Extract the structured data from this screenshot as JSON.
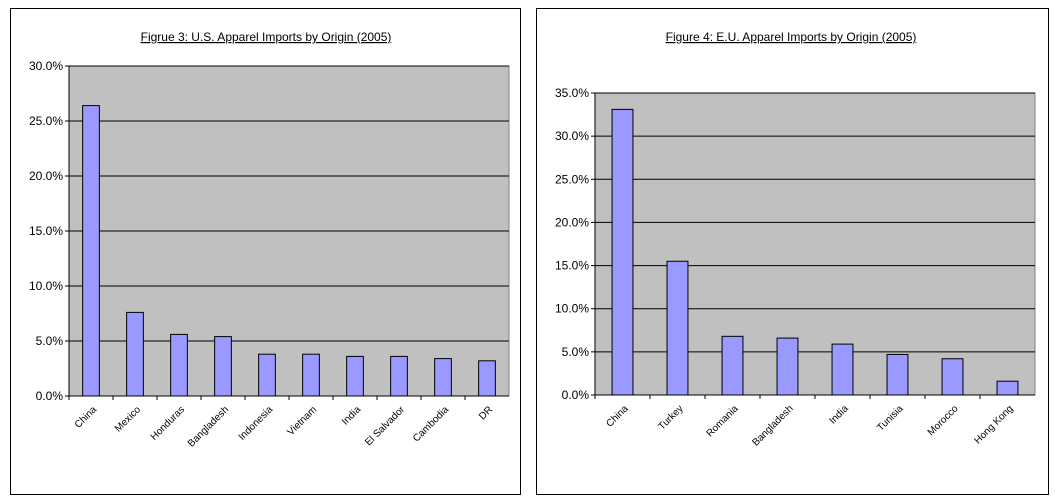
{
  "charts": [
    {
      "type": "bar",
      "title": "Figrue 3: U.S. Apparel Imports by Origin (2005)",
      "categories": [
        "China",
        "Mexico",
        "Honduras",
        "Bangladesh",
        "Indonesia",
        "Vietnam",
        "India",
        "El Salvador",
        "Cambodia",
        "DR"
      ],
      "values": [
        26.4,
        7.6,
        5.6,
        5.4,
        3.8,
        3.8,
        3.6,
        3.6,
        3.4,
        3.2
      ],
      "ylim": [
        0,
        30
      ],
      "yticks": [
        "0.0%",
        "5.0%",
        "10.0%",
        "15.0%",
        "20.0%",
        "25.0%",
        "30.0%"
      ],
      "xlabel": "",
      "ylabel": "",
      "grid": true,
      "legend": "none",
      "colors": {
        "bar": "#9999ff",
        "plot_bg": "#c0c0c0"
      }
    },
    {
      "type": "bar",
      "title": "Figure 4: E.U. Apparel Imports by Origin (2005)",
      "categories": [
        "China",
        "Turkey",
        "Romania",
        "Bangladesh",
        "India",
        "Tunisia",
        "Morocco",
        "Hong Kong"
      ],
      "values": [
        33.1,
        15.5,
        6.8,
        6.6,
        5.9,
        4.7,
        4.2,
        1.6
      ],
      "ylim": [
        0,
        35
      ],
      "yticks": [
        "0.0%",
        "5.0%",
        "10.0%",
        "15.0%",
        "20.0%",
        "25.0%",
        "30.0%",
        "35.0%"
      ],
      "xlabel": "",
      "ylabel": "",
      "grid": true,
      "legend": "none",
      "colors": {
        "bar": "#9999ff",
        "plot_bg": "#c0c0c0"
      }
    }
  ]
}
